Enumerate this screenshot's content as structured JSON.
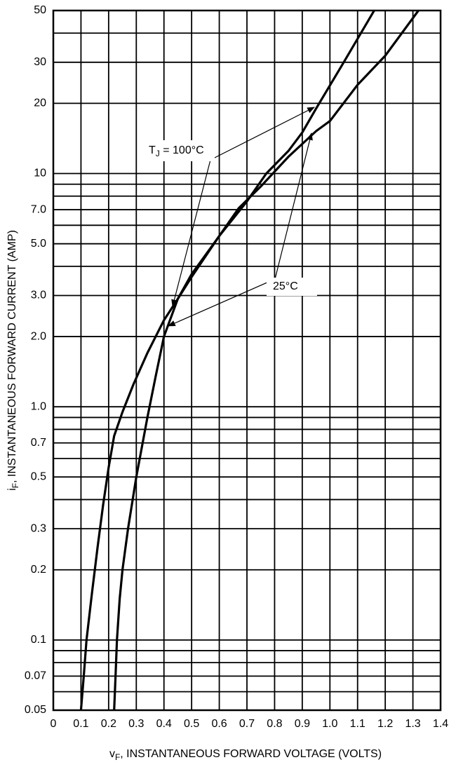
{
  "chart_data": {
    "type": "line",
    "log_y": true,
    "grid": true,
    "y_label": {
      "main": "i",
      "sub": "F",
      "rest": ", INSTANTANEOUS FORWARD CURRENT (AMP)"
    },
    "x_label": {
      "main": "v",
      "sub": "F",
      "rest": ", INSTANTANEOUS FORWARD VOLTAGE (VOLTS)"
    },
    "annotations": [
      {
        "main": "T",
        "sub": "J",
        "rest": " = 100°C"
      },
      {
        "main": "25°C"
      }
    ],
    "xlim": [
      0,
      1.4
    ],
    "ylim": [
      0.05,
      50
    ],
    "xticks": [
      0,
      0.1,
      0.2,
      0.3,
      0.4,
      0.5,
      0.6,
      0.7,
      0.8,
      0.9,
      {
        "value": 1,
        "label": "1.0"
      },
      1.1,
      1.2,
      1.3,
      1.4
    ],
    "yticks": [
      0.05,
      0.07,
      0.1,
      0.2,
      0.3,
      0.5,
      0.7,
      {
        "value": 1,
        "label": "1.0"
      },
      {
        "value": 2,
        "label": "2.0"
      },
      {
        "value": 3,
        "label": "3.0"
      },
      {
        "value": 5,
        "label": "5.0"
      },
      {
        "value": 7,
        "label": "7.0"
      },
      10,
      20,
      30,
      50
    ],
    "ygrid_minor": [
      0.06,
      0.08,
      0.09,
      0.4,
      0.6,
      0.8,
      0.9,
      4,
      6,
      8,
      9,
      40
    ],
    "series": [
      {
        "color": "#000000",
        "x": [
          0.1,
          0.11,
          0.12,
          0.14,
          0.16,
          0.18,
          0.2,
          0.22,
          0.25,
          0.29,
          0.34,
          0.4,
          0.45,
          0.5,
          0.6,
          0.67,
          0.75,
          0.85,
          0.95,
          1.0,
          1.1,
          1.2,
          1.32
        ],
        "values": [
          0.05,
          0.07,
          0.1,
          0.16,
          0.25,
          0.38,
          0.55,
          0.75,
          0.95,
          1.25,
          1.7,
          2.35,
          2.9,
          3.6,
          5.4,
          7.1,
          8.8,
          11.8,
          15.2,
          16.8,
          24,
          32,
          50
        ]
      },
      {
        "color": "#000000",
        "x": [
          0.22,
          0.225,
          0.23,
          0.24,
          0.25,
          0.27,
          0.3,
          0.34,
          0.37,
          0.4,
          0.45,
          0.5,
          0.6,
          0.7,
          0.77,
          0.85,
          0.9,
          0.95,
          1.05,
          1.16
        ],
        "values": [
          0.05,
          0.07,
          0.1,
          0.15,
          0.2,
          0.3,
          0.5,
          0.9,
          1.35,
          2.0,
          2.9,
          3.7,
          5.4,
          7.6,
          10,
          12.5,
          15,
          19,
          30,
          50
        ]
      }
    ]
  }
}
